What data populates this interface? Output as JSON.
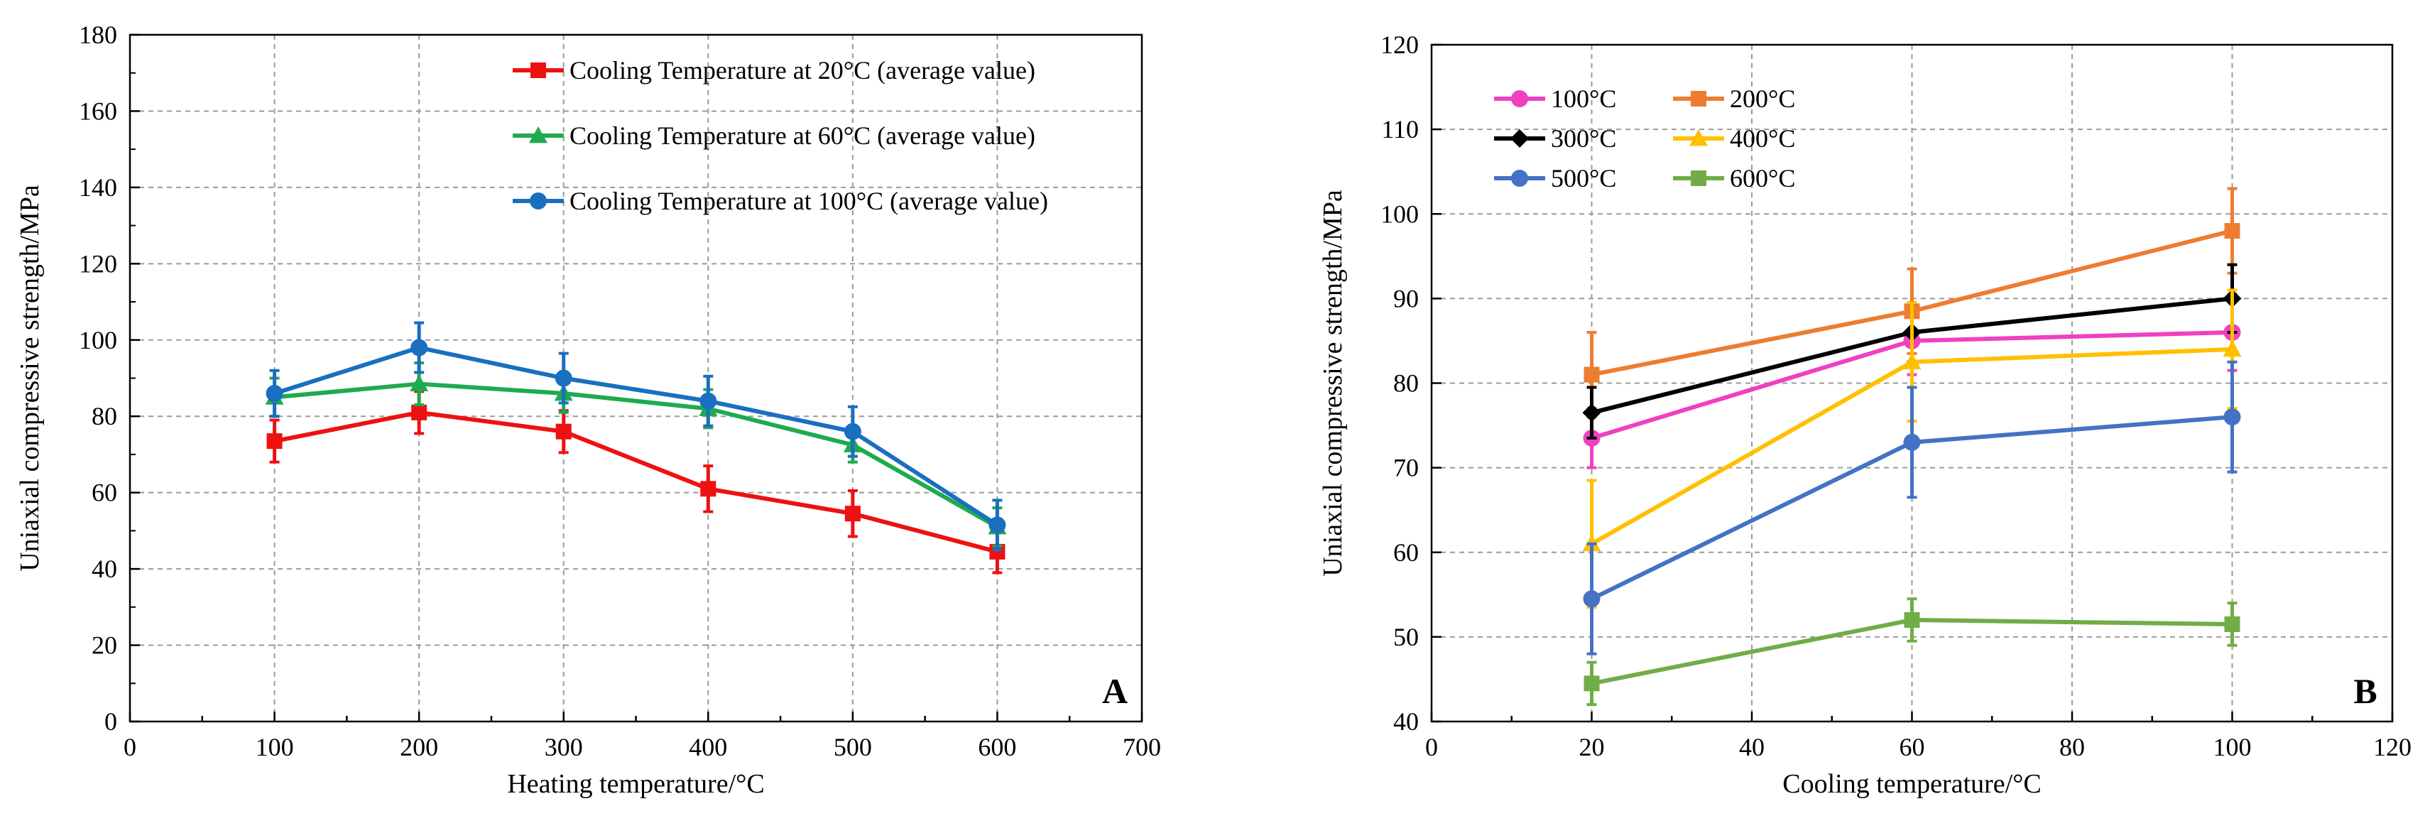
{
  "chart_data": [
    {
      "type": "line",
      "panel_label": "A",
      "xlabel": "Heating temperature/°C",
      "ylabel": "Uniaxial compressive strength/MPa",
      "xlim": [
        0,
        700
      ],
      "ylim": [
        0,
        180
      ],
      "x_ticks": [
        0,
        100,
        200,
        300,
        400,
        500,
        600,
        700
      ],
      "y_ticks": [
        0,
        20,
        40,
        60,
        80,
        100,
        120,
        140,
        160,
        180
      ],
      "x_minor_step": 50,
      "grid": true,
      "legend_position": "top-right",
      "series": [
        {
          "name": "Cooling Temperature at 20°C (average value)",
          "color": "#ee1111",
          "marker": "square",
          "x": [
            100,
            200,
            300,
            400,
            500,
            600
          ],
          "values": [
            73.5,
            81,
            76,
            61,
            54.5,
            44.5
          ],
          "errors": [
            5.5,
            5.5,
            5.5,
            6,
            6,
            5.5
          ]
        },
        {
          "name": "Cooling Temperature at 60°C (average value)",
          "color": "#1faa4f",
          "marker": "triangle",
          "x": [
            100,
            200,
            300,
            400,
            500,
            600
          ],
          "values": [
            85,
            88.5,
            86,
            82,
            72.5,
            51
          ],
          "errors": [
            5,
            5.5,
            5,
            5,
            4.5,
            5
          ]
        },
        {
          "name": "Cooling Temperature at 100°C (average value)",
          "color": "#1a6fc0",
          "marker": "circle",
          "x": [
            100,
            200,
            300,
            400,
            500,
            600
          ],
          "values": [
            86,
            98,
            90,
            84,
            76,
            51.5
          ],
          "errors": [
            6,
            6.5,
            6.5,
            6.5,
            6.5,
            6.5
          ]
        }
      ]
    },
    {
      "type": "line",
      "panel_label": "B",
      "xlabel": "Cooling temperature/°C",
      "ylabel": "Uniaxial compressive strength/MPa",
      "xlim": [
        0,
        120
      ],
      "ylim": [
        40,
        120
      ],
      "x_ticks": [
        0,
        20,
        40,
        60,
        80,
        100,
        120
      ],
      "y_ticks": [
        40,
        50,
        60,
        70,
        80,
        90,
        100,
        110,
        120
      ],
      "x_minor_step": 10,
      "grid": true,
      "legend_position": "top-left",
      "series": [
        {
          "name": "100°C",
          "color": "#f040c0",
          "marker": "circle",
          "x": [
            20,
            60,
            100
          ],
          "values": [
            73.5,
            85,
            86
          ],
          "errors": [
            3.5,
            4,
            4.5
          ]
        },
        {
          "name": "200°C",
          "color": "#ed7d31",
          "marker": "square",
          "x": [
            20,
            60,
            100
          ],
          "values": [
            81,
            88.5,
            98
          ],
          "errors": [
            5,
            5,
            5
          ]
        },
        {
          "name": "300°C",
          "color": "#000000",
          "marker": "diamond",
          "x": [
            20,
            60,
            100
          ],
          "values": [
            76.5,
            86,
            90
          ],
          "errors": [
            3,
            3.5,
            4
          ]
        },
        {
          "name": "400°C",
          "color": "#ffc000",
          "marker": "triangle",
          "x": [
            20,
            60,
            100
          ],
          "values": [
            61,
            82.5,
            84
          ],
          "errors": [
            7.5,
            7,
            7
          ]
        },
        {
          "name": "500°C",
          "color": "#4472c4",
          "marker": "circle",
          "x": [
            20,
            60,
            100
          ],
          "values": [
            54.5,
            73,
            76
          ],
          "errors": [
            6.5,
            6.5,
            6.5
          ]
        },
        {
          "name": "600°C",
          "color": "#70ad47",
          "marker": "square",
          "x": [
            20,
            60,
            100
          ],
          "values": [
            44.5,
            52,
            51.5
          ],
          "errors": [
            2.5,
            2.5,
            2.5
          ]
        }
      ]
    }
  ]
}
